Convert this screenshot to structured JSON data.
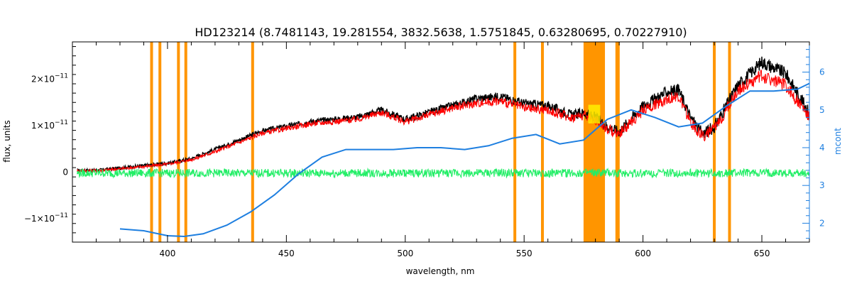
{
  "chart_data": {
    "type": "line",
    "title": "HD123214   (8.7481143, 19.281554, 3832.5638, 1.5751845, 0.63280695, 0.70227910)",
    "xlabel": "wavelength, nm",
    "ylabel": "flux, units",
    "y2label": "mcont",
    "xlim": [
      360,
      670
    ],
    "ylim": [
      -1.5e-11,
      2.8e-11
    ],
    "y2lim": [
      1.5,
      6.8
    ],
    "x_ticks": [
      400,
      450,
      500,
      550,
      600,
      650
    ],
    "y_ticks": [
      {
        "value": -1e-11,
        "label_base": "−1×10",
        "label_exp": "−11"
      },
      {
        "value": 0,
        "label_base": "0",
        "label_exp": ""
      },
      {
        "value": 1e-11,
        "label_base": "1×10",
        "label_exp": "−11"
      },
      {
        "value": 2e-11,
        "label_base": "2×10",
        "label_exp": "−11"
      }
    ],
    "y2_ticks": [
      2,
      3,
      4,
      5,
      6
    ],
    "masked_lines_nm": [
      393.3,
      396.8,
      404.6,
      407.7,
      435.8,
      546.1,
      557.7,
      589.0,
      589.6,
      630.0,
      636.4
    ],
    "masked_band_nm": [
      575.0,
      584.0
    ],
    "series": [
      {
        "role": "observed",
        "color": "#000000",
        "x": [
          362,
          370,
          380,
          390,
          400,
          410,
          420,
          430,
          440,
          450,
          460,
          470,
          480,
          490,
          500,
          510,
          520,
          530,
          540,
          550,
          560,
          570,
          575,
          580,
          585,
          590,
          600,
          610,
          615,
          620,
          625,
          630,
          640,
          650,
          660,
          670
        ],
        "y": [
          5e-13,
          5e-13,
          1e-12,
          1.5e-12,
          2e-12,
          3e-12,
          5e-12,
          7e-12,
          9e-12,
          1e-11,
          1.1e-11,
          1.15e-11,
          1.2e-11,
          1.35e-11,
          1.15e-11,
          1.3e-11,
          1.45e-11,
          1.6e-11,
          1.65e-11,
          1.5e-11,
          1.45e-11,
          1.25e-11,
          1.3e-11,
          1.2e-11,
          1e-11,
          9e-12,
          1.45e-11,
          1.75e-11,
          1.8e-11,
          1.2e-11,
          8.5e-12,
          1e-11,
          1.9e-11,
          2.4e-11,
          2.15e-11,
          1.3e-11
        ]
      },
      {
        "role": "model",
        "color": "#ff0000",
        "x": [
          362,
          370,
          380,
          390,
          400,
          410,
          420,
          430,
          440,
          450,
          460,
          470,
          480,
          490,
          500,
          510,
          520,
          530,
          540,
          550,
          560,
          570,
          575,
          580,
          585,
          590,
          600,
          610,
          615,
          620,
          625,
          630,
          640,
          650,
          660,
          670
        ],
        "y": [
          4e-13,
          4e-13,
          8e-13,
          1.3e-12,
          1.8e-12,
          2.8e-12,
          4.5e-12,
          6.5e-12,
          8.5e-12,
          9.5e-12,
          1.05e-11,
          1.1e-11,
          1.15e-11,
          1.3e-11,
          1.1e-11,
          1.25e-11,
          1.4e-11,
          1.5e-11,
          1.55e-11,
          1.4e-11,
          1.35e-11,
          1.2e-11,
          1.25e-11,
          1.15e-11,
          9.5e-12,
          8.5e-12,
          1.35e-11,
          1.6e-11,
          1.65e-11,
          1.1e-11,
          8e-12,
          9.5e-12,
          1.8e-11,
          2.1e-11,
          1.9e-11,
          1.2e-11
        ]
      },
      {
        "role": "residual",
        "color": "#22ee66",
        "x": [
          362,
          370,
          380,
          390,
          400,
          410,
          420,
          430,
          440,
          450,
          460,
          470,
          480,
          490,
          500,
          510,
          520,
          530,
          540,
          550,
          560,
          570,
          575,
          580,
          585,
          590,
          600,
          610,
          620,
          630,
          640,
          650,
          655,
          660,
          670
        ],
        "y": [
          0,
          0,
          0,
          0,
          0,
          0,
          0,
          0,
          0,
          0,
          0,
          0,
          0,
          0,
          0,
          0,
          0,
          0,
          0,
          0,
          0,
          0,
          0,
          0,
          0,
          0,
          0,
          0,
          0,
          0,
          0,
          0,
          0,
          0,
          0
        ]
      },
      {
        "role": "continuum (mcont)",
        "axis": "right",
        "color": "#1e7fe0",
        "x": [
          380,
          390,
          400,
          407,
          415,
          425,
          435,
          445,
          455,
          465,
          475,
          485,
          495,
          505,
          515,
          525,
          535,
          545,
          555,
          565,
          575,
          585,
          595,
          605,
          615,
          625,
          635,
          645,
          655,
          665,
          670
        ],
        "y": [
          1.85,
          1.8,
          1.67,
          1.65,
          1.72,
          1.95,
          2.3,
          2.75,
          3.3,
          3.75,
          3.95,
          3.95,
          3.95,
          4.0,
          4.0,
          3.95,
          4.05,
          4.25,
          4.35,
          4.1,
          4.2,
          4.75,
          5.0,
          4.8,
          4.55,
          4.65,
          5.1,
          5.5,
          5.5,
          5.55,
          5.7
        ]
      }
    ]
  }
}
